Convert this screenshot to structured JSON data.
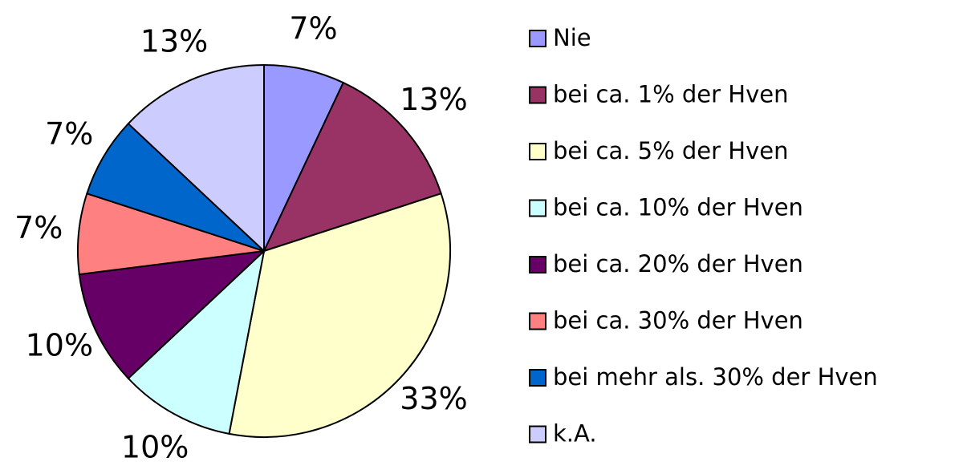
{
  "chart_data": {
    "type": "pie",
    "categories": [
      "Nie",
      "bei ca. 1% der Hven",
      "bei ca. 5% der Hven",
      "bei ca. 10% der Hven",
      "bei ca. 20% der Hven",
      "bei ca. 30% der Hven",
      "bei mehr als. 30% der Hven",
      "k.A."
    ],
    "values": [
      7,
      13,
      33,
      10,
      10,
      7,
      7,
      13
    ],
    "value_labels": [
      "7%",
      "13%",
      "33%",
      "10%",
      "10%",
      "7%",
      "7%",
      "13%"
    ],
    "colors": [
      "#9999ff",
      "#993366",
      "#ffffcc",
      "#ccffff",
      "#660066",
      "#ff8080",
      "#0066cc",
      "#ccccff"
    ],
    "legend": "right"
  }
}
